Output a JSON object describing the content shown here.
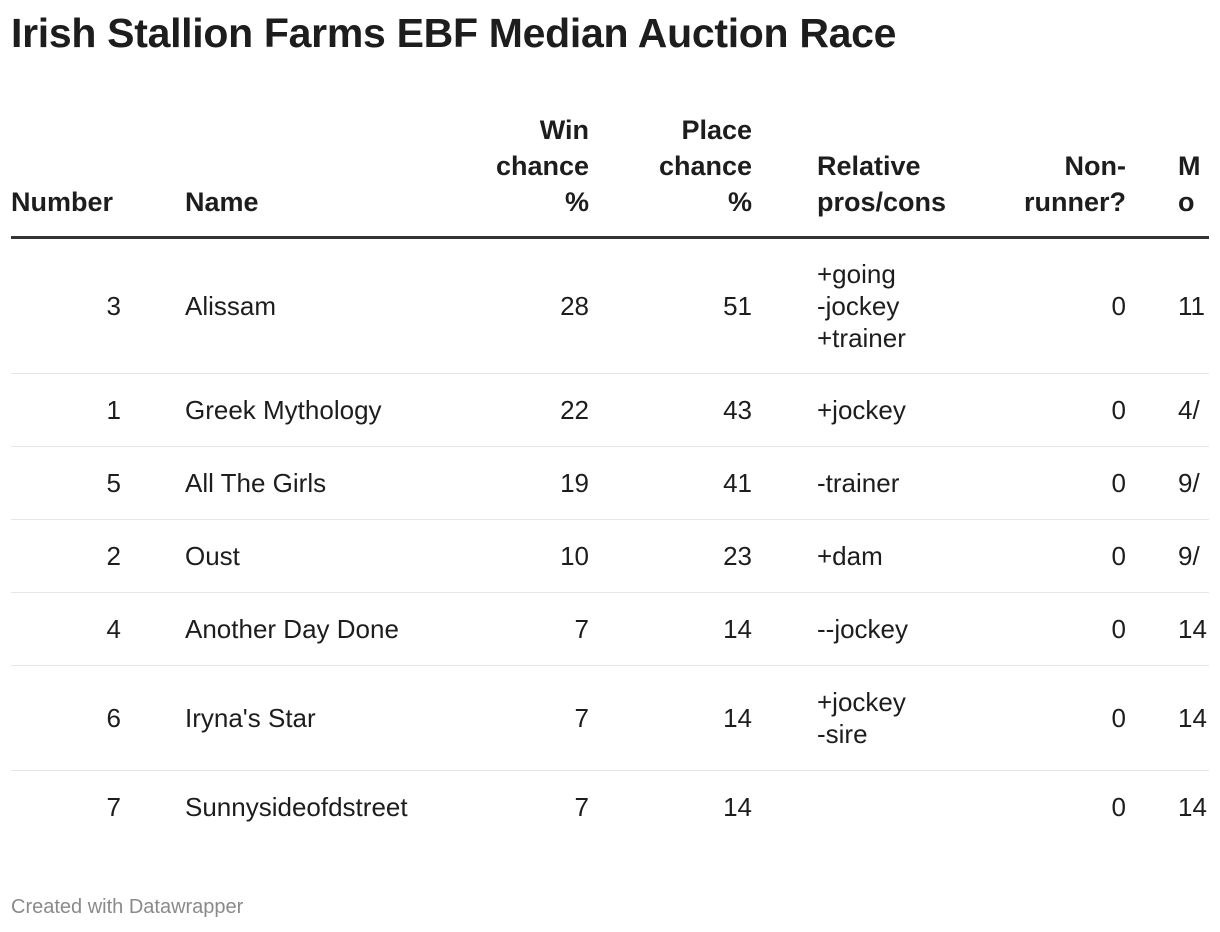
{
  "title": "Irish Stallion Farms EBF Median Auction Race",
  "headers": {
    "number": [
      "Number"
    ],
    "name": [
      "Name"
    ],
    "win": [
      "Win",
      "chance",
      "%"
    ],
    "place": [
      "Place",
      "chance",
      "%"
    ],
    "pros": [
      "Relative",
      "pros/cons"
    ],
    "nonrunner": [
      "Non-",
      "runner?"
    ],
    "odds": [
      "M",
      "o"
    ]
  },
  "rows": [
    {
      "number": "3",
      "name": "Alissam",
      "win": "28",
      "place": "51",
      "pros": [
        "+going",
        "-jockey",
        "+trainer"
      ],
      "nonrunner": "0",
      "odds": "11"
    },
    {
      "number": "1",
      "name": "Greek Mythology",
      "win": "22",
      "place": "43",
      "pros": [
        "+jockey"
      ],
      "nonrunner": "0",
      "odds": "4/"
    },
    {
      "number": "5",
      "name": "All The Girls",
      "win": "19",
      "place": "41",
      "pros": [
        "-trainer"
      ],
      "nonrunner": "0",
      "odds": "9/"
    },
    {
      "number": "2",
      "name": "Oust",
      "win": "10",
      "place": "23",
      "pros": [
        "+dam"
      ],
      "nonrunner": "0",
      "odds": "9/"
    },
    {
      "number": "4",
      "name": "Another Day Done",
      "win": "7",
      "place": "14",
      "pros": [
        "--jockey"
      ],
      "nonrunner": "0",
      "odds": "14"
    },
    {
      "number": "6",
      "name": "Iryna's Star",
      "win": "7",
      "place": "14",
      "pros": [
        "+jockey",
        "-sire"
      ],
      "nonrunner": "0",
      "odds": "14"
    },
    {
      "number": "7",
      "name": "Sunnysideofdstreet",
      "win": "7",
      "place": "14",
      "pros": [],
      "nonrunner": "0",
      "odds": "14"
    }
  ],
  "footer": "Created with Datawrapper"
}
